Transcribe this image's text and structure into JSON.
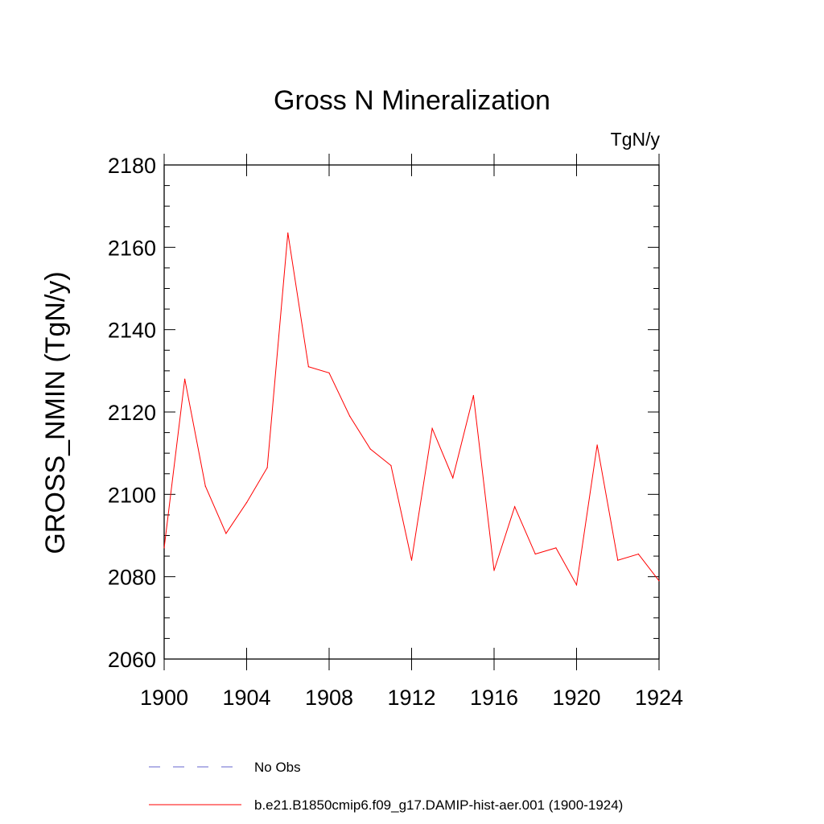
{
  "chart_data": {
    "type": "line",
    "title": "Gross N Mineralization",
    "units_label": "TgN/y",
    "ylabel": "GROSS_NMIN  (TgN/y)",
    "xlabel": "",
    "xlim": [
      1900,
      1924
    ],
    "ylim": [
      2060,
      2180
    ],
    "x_ticks": [
      1900,
      1904,
      1908,
      1912,
      1916,
      1920,
      1924
    ],
    "x_tick_labels": [
      "1900",
      "1904",
      "1908",
      "1912",
      "1916",
      "1920",
      "1924"
    ],
    "y_ticks": [
      2060,
      2080,
      2100,
      2120,
      2140,
      2160,
      2180
    ],
    "y_tick_labels": [
      "2060",
      "2080",
      "2100",
      "2120",
      "2140",
      "2160",
      "2180"
    ],
    "grid": false,
    "legend_position": "bottom",
    "series": [
      {
        "name": "b.e21.B1850cmip6.f09_g17.DAMIP-hist-aer.001 (1900-1924)",
        "color": "#ff0000",
        "style": "solid",
        "x": [
          1900,
          1901,
          1902,
          1903,
          1904,
          1905,
          1906,
          1907,
          1908,
          1909,
          1910,
          1911,
          1912,
          1913,
          1914,
          1915,
          1916,
          1917,
          1918,
          1919,
          1920,
          1921,
          1922,
          1923,
          1924
        ],
        "y": [
          2087,
          2128,
          2102,
          2090.5,
          2098,
          2106.5,
          2163.5,
          2131,
          2129.5,
          2119,
          2111,
          2107,
          2084,
          2116,
          2104,
          2124,
          2081.5,
          2097,
          2085.5,
          2087,
          2078,
          2112,
          2084,
          2085.5,
          2079
        ]
      }
    ],
    "legend": [
      {
        "label": "No Obs",
        "color": "#6666cc",
        "style": "dashed"
      },
      {
        "label": "b.e21.B1850cmip6.f09_g17.DAMIP-hist-aer.001 (1900-1924)",
        "color": "#ff0000",
        "style": "solid"
      }
    ]
  }
}
